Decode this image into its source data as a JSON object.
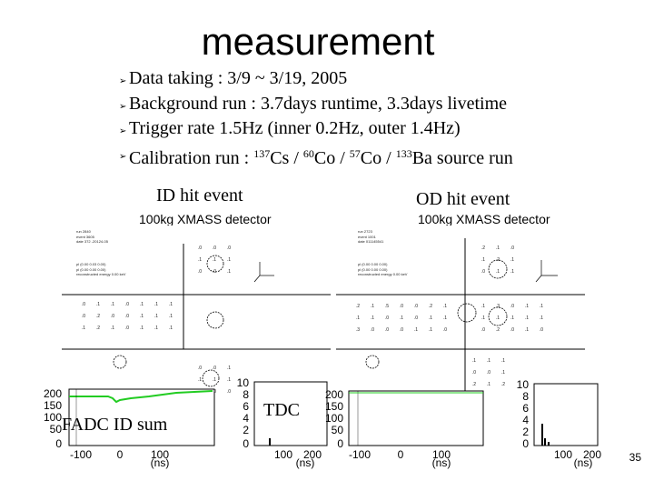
{
  "title": "measurement",
  "bullets": [
    {
      "parts": [
        {
          "t": "Data taking : 3/9 ~ 3/19, 2005"
        }
      ]
    },
    {
      "parts": [
        {
          "t": "Background run : 3.7days runtime, 3.3days livetime"
        }
      ]
    },
    {
      "parts": [
        {
          "t": "Trigger rate 1.5Hz (inner 0.2Hz, outer 1.4Hz)"
        }
      ]
    },
    {
      "parts": [
        {
          "t": "Calibration run : "
        },
        {
          "s": "137"
        },
        {
          "t": "Cs / "
        },
        {
          "s": "60"
        },
        {
          "t": "Co / "
        },
        {
          "s": "57"
        },
        {
          "t": "Co / "
        },
        {
          "s": "133"
        },
        {
          "t": "Ba  source run"
        }
      ]
    }
  ],
  "bullet_glyph": "➢",
  "id_panel": {
    "caption": "ID hit event",
    "detector": "100kg XMASS detector",
    "waveform_label": "FADC ID sum",
    "tdc_label": "TDC",
    "wave_yticks": [
      "200",
      "150",
      "100",
      "50",
      "0"
    ],
    "wave_xticks": [
      "-100",
      "0",
      "100"
    ],
    "wave_xunit": "(ns)",
    "tdc_yticks": [
      "10",
      "8",
      "6",
      "4",
      "2",
      "0"
    ],
    "tdc_xticks": [
      "100",
      "200"
    ],
    "tdc_xunit": "(ns)"
  },
  "od_panel": {
    "caption": "OD hit event",
    "detector": "100kg XMASS detector",
    "wave_yticks": [
      "200",
      "150",
      "100",
      "50",
      "0"
    ],
    "wave_xticks": [
      "-100",
      "0",
      "100"
    ],
    "wave_xunit": "(ns)",
    "tdc_yticks": [
      "10",
      "8",
      "6",
      "4",
      "2",
      "0"
    ],
    "tdc_xticks": [
      "100",
      "200"
    ],
    "tdc_xunit": "(ns)"
  },
  "page_number": "35",
  "colors": {
    "trace": "#22cc22",
    "frame": "#000000"
  }
}
